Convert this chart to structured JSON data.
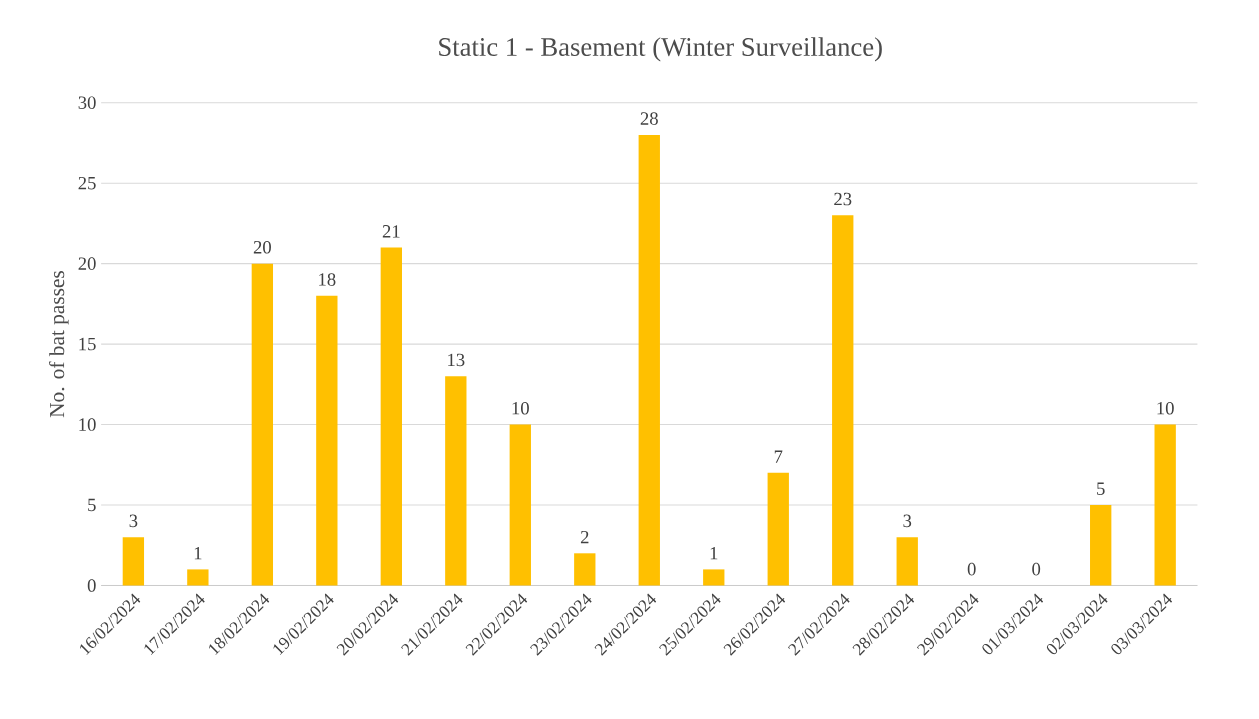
{
  "chart_data": {
    "type": "bar",
    "title": "Static 1 - Basement (Winter Surveillance)",
    "ylabel": "No. of bat passes",
    "categories": [
      "16/02/2024",
      "17/02/2024",
      "18/02/2024",
      "19/02/2024",
      "20/02/2024",
      "21/02/2024",
      "22/02/2024",
      "23/02/2024",
      "24/02/2024",
      "25/02/2024",
      "26/02/2024",
      "27/02/2024",
      "28/02/2024",
      "29/02/2024",
      "01/03/2024",
      "02/03/2024",
      "03/03/2024"
    ],
    "values": [
      3,
      1,
      20,
      18,
      21,
      13,
      10,
      2,
      28,
      1,
      7,
      23,
      3,
      0,
      0,
      5,
      10
    ],
    "color": "#ffc000",
    "ylim": [
      0,
      30
    ],
    "yticks": [
      0,
      5,
      10,
      15,
      20,
      25,
      30
    ],
    "grid": "y",
    "data_labels": true
  }
}
